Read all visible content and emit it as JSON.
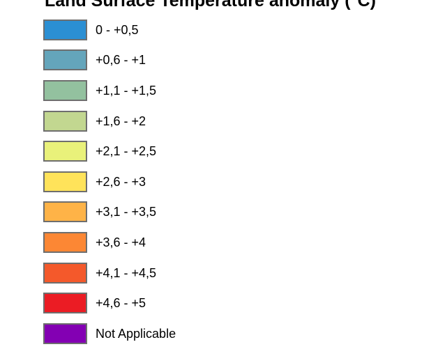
{
  "legend": {
    "title": "Land Surface Temperature anomaly (°C)",
    "items": [
      {
        "label": "0 - +0,5",
        "color": "#2b8fd3"
      },
      {
        "label": "+0,6 - +1",
        "color": "#64a5bb"
      },
      {
        "label": "+1,1 - +1,5",
        "color": "#93c19f"
      },
      {
        "label": "+1,6 - +2",
        "color": "#c2d790"
      },
      {
        "label": "+2,1 - +2,5",
        "color": "#e9f17a"
      },
      {
        "label": "+2,6 - +3",
        "color": "#ffe35a"
      },
      {
        "label": "+3,1 - +3,5",
        "color": "#feb347"
      },
      {
        "label": "+3,6 - +4",
        "color": "#fc8734"
      },
      {
        "label": "+4,1 - +4,5",
        "color": "#f4592b"
      },
      {
        "label": "+4,6 - +5",
        "color": "#eb1c24"
      },
      {
        "label": "Not Applicable",
        "color": "#8300b3"
      }
    ]
  }
}
